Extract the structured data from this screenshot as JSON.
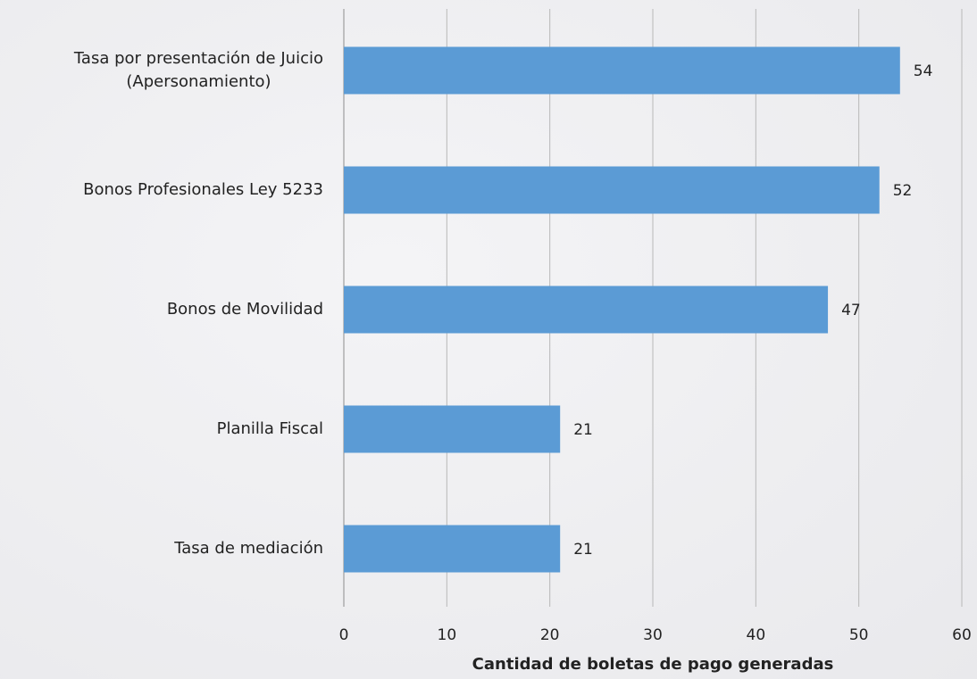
{
  "chart_data": {
    "type": "bar",
    "orientation": "horizontal",
    "categories": [
      "Tasa por presentación de Juicio\n(Apersonamiento)",
      "Bonos Profesionales Ley 5233",
      "Bonos de Movilidad",
      "Planilla Fiscal",
      "Tasa de mediación"
    ],
    "values": [
      54,
      52,
      47,
      21,
      21
    ],
    "color": "#5b9bd5",
    "xlabel": "Cantidad de boletas de pago generadas",
    "xlim": [
      0,
      60
    ],
    "xticks": [
      0,
      10,
      20,
      30,
      40,
      50,
      60
    ],
    "grid": true
  }
}
